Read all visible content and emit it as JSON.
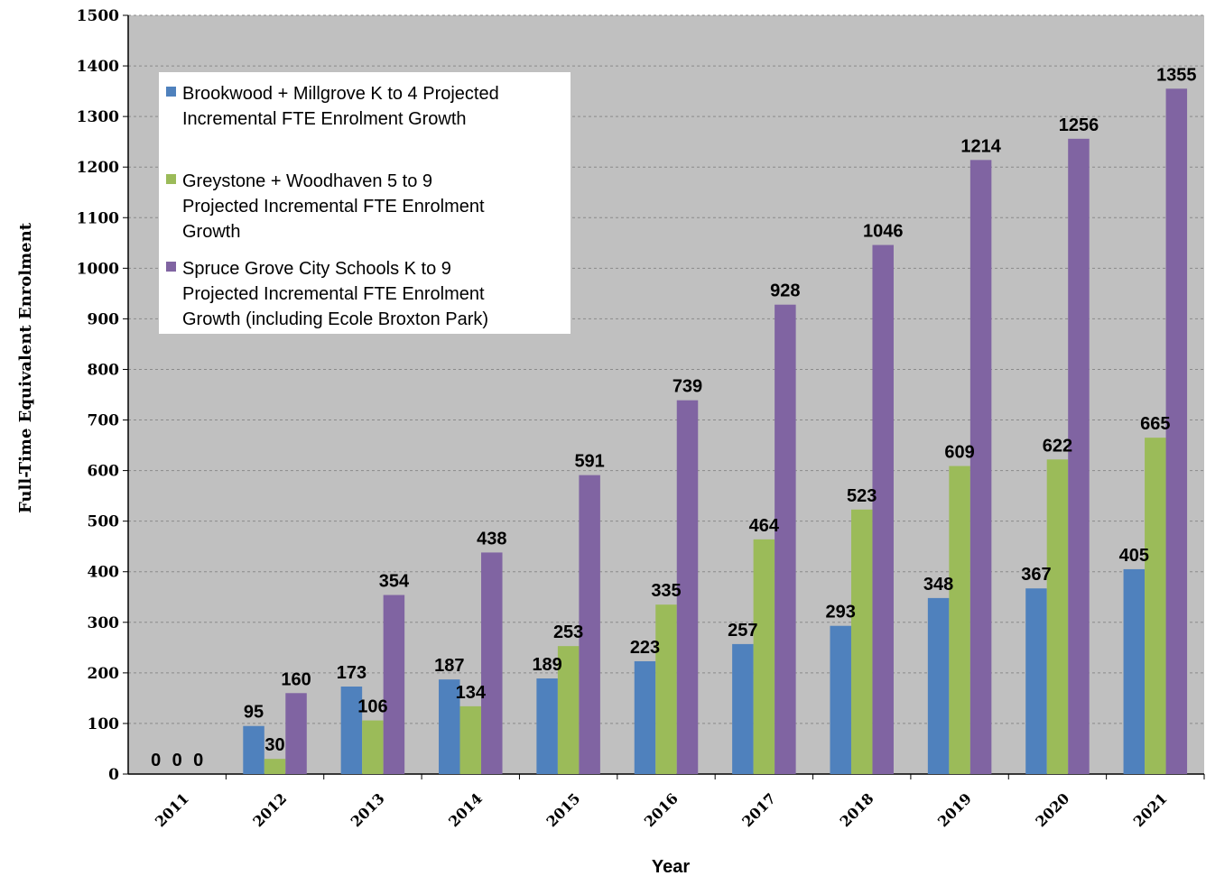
{
  "chart_data": {
    "type": "bar",
    "title": "",
    "xlabel": "Year",
    "ylabel": "Full-Time Equivalent Enrolment",
    "ylim": [
      0,
      1500
    ],
    "ytick_step": 100,
    "grid": "horizontal dashed",
    "legend_position": "top-left",
    "background_color": "#c0c0c0",
    "categories": [
      "2011",
      "2012",
      "2013",
      "2014",
      "2015",
      "2016",
      "2017",
      "2018",
      "2019",
      "2020",
      "2021"
    ],
    "series": [
      {
        "name": "Brookwood + Millgrove K to 4 Projected Incremental FTE Enrolment Growth",
        "legend_lines": [
          "Brookwood + Millgrove K to 4 Projected",
          "Incremental FTE Enrolment Growth"
        ],
        "color": "#4f81bd",
        "values": [
          0,
          95,
          173,
          187,
          189,
          223,
          257,
          293,
          348,
          367,
          405
        ]
      },
      {
        "name": "Greystone + Woodhaven 5 to 9 Projected Incremental FTE Enrolment Growth",
        "legend_lines": [
          "Greystone + Woodhaven 5 to 9",
          "Projected Incremental FTE Enrolment",
          "Growth"
        ],
        "color": "#9bbb59",
        "values": [
          0,
          30,
          106,
          134,
          253,
          335,
          464,
          523,
          609,
          622,
          665
        ]
      },
      {
        "name": "Spruce Grove City Schools K to 9 Projected Incremental FTE Enrolment Growth (including Ecole Broxton Park)",
        "legend_lines": [
          "Spruce Grove City Schools K to 9",
          "Projected Incremental FTE Enrolment",
          "Growth (including Ecole Broxton Park)"
        ],
        "color": "#8064a2",
        "values": [
          0,
          160,
          354,
          438,
          591,
          739,
          928,
          1046,
          1214,
          1256,
          1355
        ]
      }
    ]
  }
}
